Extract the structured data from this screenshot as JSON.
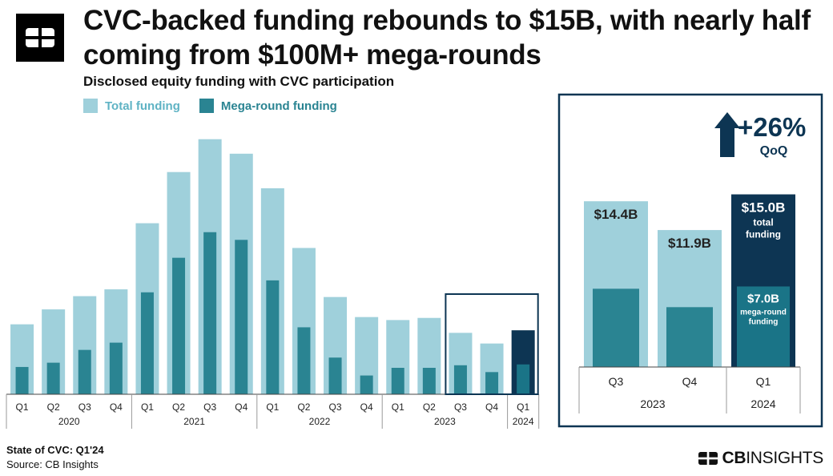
{
  "header": {
    "title": "CVC-backed funding rebounds to $15B, with nearly half coming from $100M+ mega-rounds",
    "subtitle": "Disclosed equity funding with CVC participation"
  },
  "footer": {
    "title": "State of CVC: Q1'24",
    "source": "Source: CB Insights",
    "brand_prefix": "CB",
    "brand_suffix": "INSIGHTS"
  },
  "colors": {
    "total": "#9fd0db",
    "mega": "#2a8492",
    "total_highlight": "#0d3553",
    "mega_highlight": "#1a7487",
    "frame": "#0d3553",
    "axis": "#444444"
  },
  "chart_data": [
    {
      "type": "bar",
      "legend": [
        "Total funding",
        "Mega-round funding"
      ],
      "legend_placement": "top-left",
      "grid": false,
      "categories": [
        {
          "quarter": "Q1",
          "year": "2020"
        },
        {
          "quarter": "Q2",
          "year": "2020"
        },
        {
          "quarter": "Q3",
          "year": "2020"
        },
        {
          "quarter": "Q4",
          "year": "2020"
        },
        {
          "quarter": "Q1",
          "year": "2021"
        },
        {
          "quarter": "Q2",
          "year": "2021"
        },
        {
          "quarter": "Q3",
          "year": "2021"
        },
        {
          "quarter": "Q4",
          "year": "2021"
        },
        {
          "quarter": "Q1",
          "year": "2022"
        },
        {
          "quarter": "Q2",
          "year": "2022"
        },
        {
          "quarter": "Q3",
          "year": "2022"
        },
        {
          "quarter": "Q4",
          "year": "2022"
        },
        {
          "quarter": "Q1",
          "year": "2023"
        },
        {
          "quarter": "Q2",
          "year": "2023"
        },
        {
          "quarter": "Q3",
          "year": "2023"
        },
        {
          "quarter": "Q4",
          "year": "2023"
        },
        {
          "quarter": "Q1",
          "year": "2024"
        }
      ],
      "years": [
        "2020",
        "2021",
        "2022",
        "2023",
        "2024"
      ],
      "series": [
        {
          "name": "Total funding",
          "values": [
            16.4,
            19.9,
            23.0,
            24.6,
            40.1,
            52.1,
            59.8,
            56.4,
            48.3,
            34.3,
            22.8,
            18.1,
            17.4,
            17.9,
            14.4,
            11.9,
            15.0
          ]
        },
        {
          "name": "Mega-round funding",
          "values": [
            6.4,
            7.4,
            10.4,
            12.1,
            23.9,
            32.0,
            38.0,
            36.2,
            26.7,
            15.7,
            8.6,
            4.4,
            6.2,
            6.2,
            6.8,
            5.2,
            7.0
          ]
        }
      ],
      "highlight_index": 16,
      "ylim": [
        0,
        62
      ]
    },
    {
      "type": "bar",
      "categories": [
        {
          "quarter": "Q3",
          "year": "2023"
        },
        {
          "quarter": "Q4",
          "year": "2023"
        },
        {
          "quarter": "Q1",
          "year": "2024"
        }
      ],
      "years": [
        "2023",
        "2024"
      ],
      "series": [
        {
          "name": "Total funding",
          "values": [
            14.4,
            11.9,
            15.0
          ]
        },
        {
          "name": "Mega-round funding",
          "values": [
            6.8,
            5.2,
            7.0
          ]
        }
      ],
      "total_labels": [
        "$14.4B",
        "$11.9B",
        "$15.0B"
      ],
      "total_caption": [
        "total",
        "funding"
      ],
      "mega_label": "$7.0B",
      "mega_caption": [
        "mega-round",
        "funding"
      ],
      "change_label": "+26%",
      "change_sub": "QoQ",
      "ylim": [
        0,
        16.5
      ]
    }
  ]
}
